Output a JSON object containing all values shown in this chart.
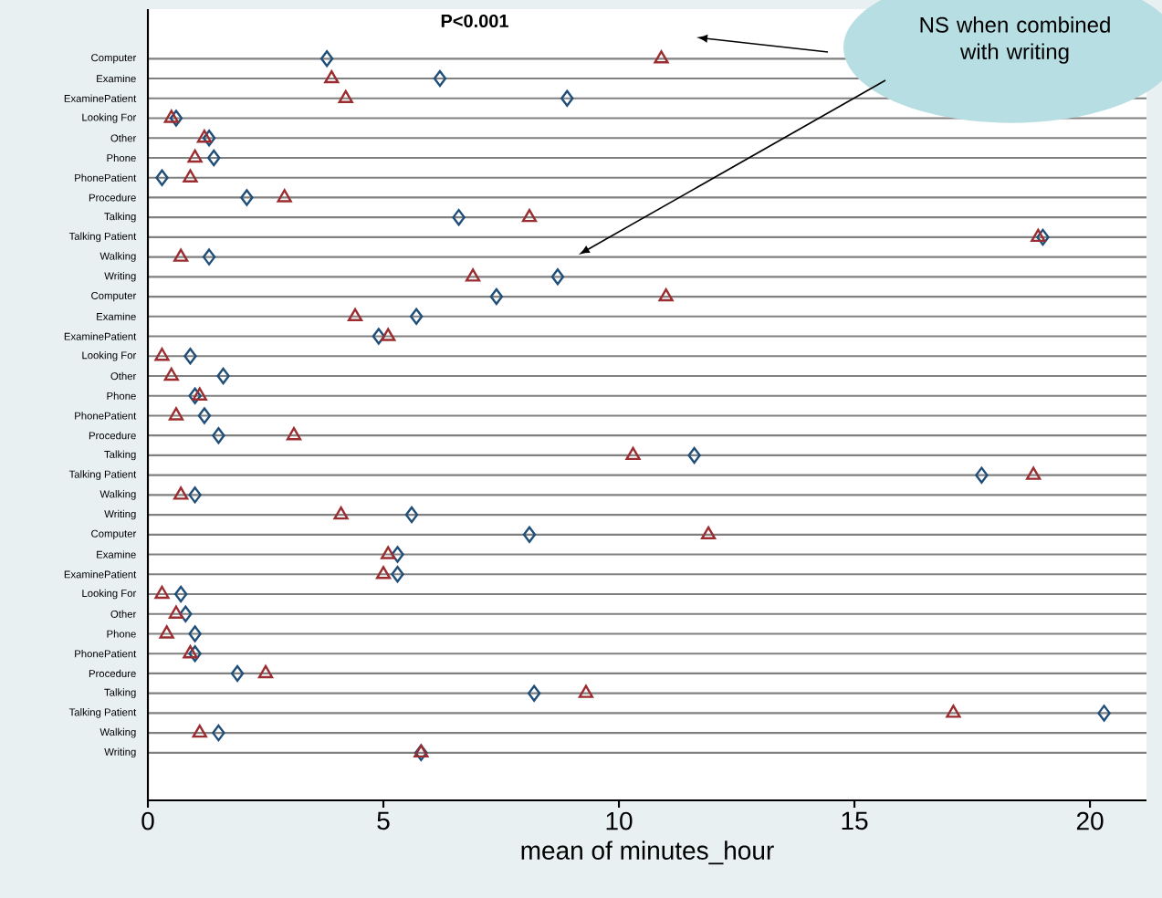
{
  "chart_data": {
    "type": "scatter",
    "orientation": "horizontal",
    "categories": [
      "Computer",
      "Examine",
      "ExaminePatient",
      "Looking For",
      "Other",
      "Phone",
      "PhonePatient",
      "Procedure",
      "Talking",
      "Talking Patient",
      "Walking",
      "Writing",
      "Computer",
      "Examine",
      "ExaminePatient",
      "Looking For",
      "Other",
      "Phone",
      "PhonePatient",
      "Procedure",
      "Talking",
      "Talking Patient",
      "Walking",
      "Writing",
      "Computer",
      "Examine",
      "ExaminePatient",
      "Looking For",
      "Other",
      "Phone",
      "PhonePatient",
      "Procedure",
      "Talking",
      "Talking Patient",
      "Walking",
      "Writing"
    ],
    "series": [
      {
        "color": "#1f4e79",
        "marker": "diamond",
        "values": [
          3.8,
          6.2,
          8.9,
          0.6,
          1.3,
          1.4,
          0.3,
          2.1,
          6.6,
          19.0,
          1.3,
          8.7,
          7.4,
          5.7,
          4.9,
          0.9,
          1.6,
          1.0,
          1.2,
          1.5,
          11.6,
          17.7,
          1.0,
          5.6,
          8.1,
          5.3,
          5.3,
          0.7,
          0.8,
          1.0,
          1.0,
          1.9,
          8.2,
          20.3,
          1.5,
          5.8
        ]
      },
      {
        "color": "#9b2d30",
        "marker": "triangle",
        "values": [
          10.9,
          3.9,
          4.2,
          0.5,
          1.2,
          1.0,
          0.9,
          2.9,
          8.1,
          18.9,
          0.7,
          6.9,
          11.0,
          4.4,
          5.1,
          0.3,
          0.5,
          1.1,
          0.6,
          3.1,
          10.3,
          18.8,
          0.7,
          4.1,
          11.9,
          5.1,
          5.0,
          0.3,
          0.6,
          0.4,
          0.9,
          2.5,
          9.3,
          17.1,
          1.1,
          5.8
        ]
      }
    ],
    "xlabel": "mean of minutes_hour",
    "xlim": [
      0,
      21.2
    ],
    "xticks": [
      0,
      5,
      10,
      15,
      20
    ],
    "grid": "y",
    "annotations": [
      "P<0.001",
      "NS when combined with writing"
    ]
  }
}
